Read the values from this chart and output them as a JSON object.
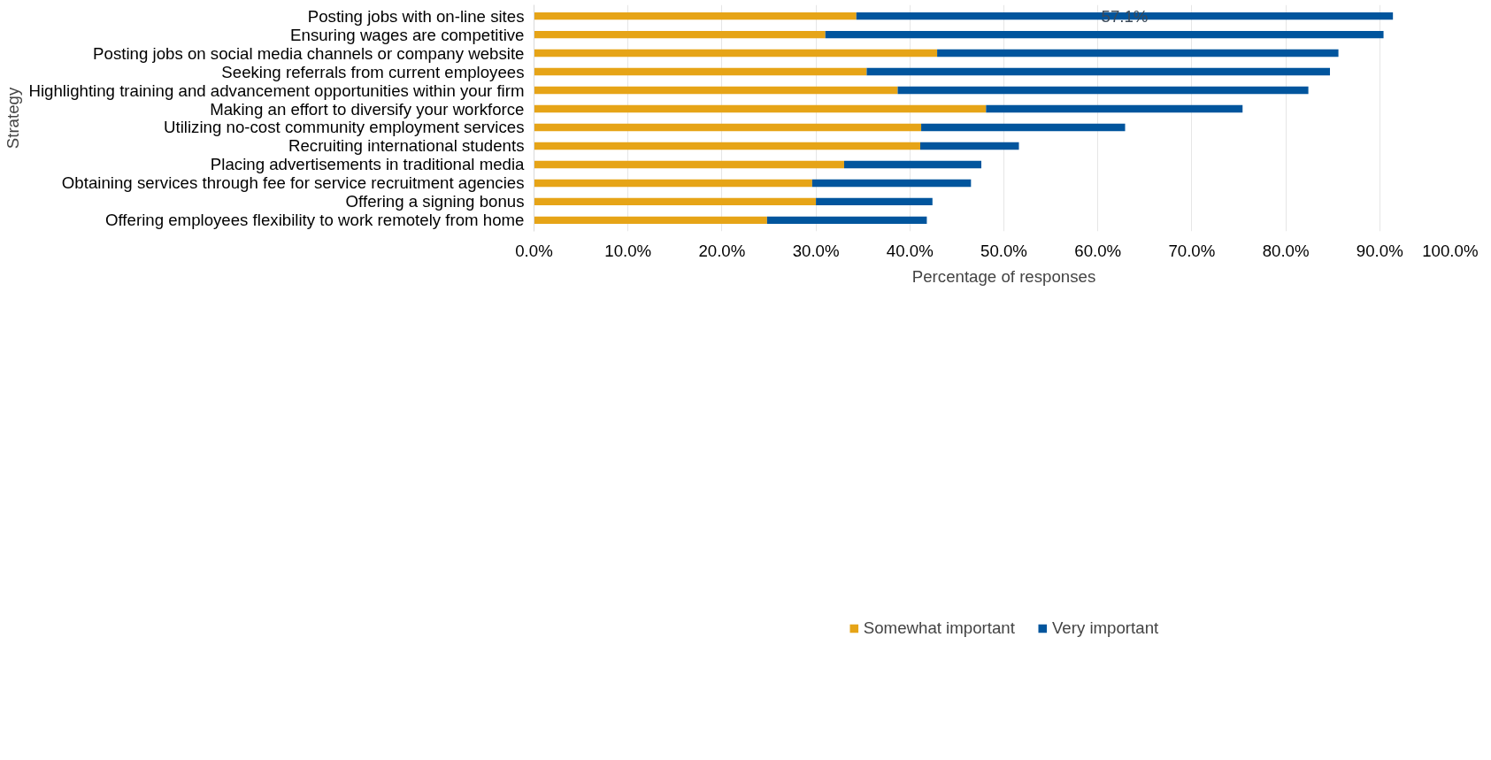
{
  "chart_data": {
    "type": "bar",
    "orientation": "horizontal",
    "stacked": true,
    "xlabel": "Percentage of responses",
    "ylabel": "Strategy",
    "categories": [
      "Posting jobs with on-line sites",
      "Ensuring wages are competitive",
      "Posting jobs on social media channels or company website",
      "Seeking referrals from current employees",
      "Highlighting training and advancement opportunities within your firm",
      "Making an effort to diversify your workforce",
      "Utilizing no-cost community employment services",
      "Recruiting international students",
      "Placing advertisements in traditional media",
      "Obtaining services through fee for service recruitment agencies",
      "Offering a signing bonus",
      "Offering employees flexibility to work remotely from home"
    ],
    "series": [
      {
        "name": "Somewhat important",
        "color": "#e6a417",
        "values": [
          34.3,
          31.0,
          42.9,
          35.4,
          38.7,
          48.1,
          41.2,
          41.1,
          33.0,
          29.6,
          30.0,
          24.8
        ]
      },
      {
        "name": "Very important",
        "color": "#01559d",
        "values": [
          57.1,
          59.4,
          42.7,
          49.3,
          43.7,
          27.3,
          21.7,
          10.5,
          14.6,
          16.9,
          12.4,
          17.0
        ],
        "value_labels": [
          "57.1%",
          null,
          null,
          null,
          null,
          null,
          null,
          null,
          null,
          null,
          null,
          null
        ]
      }
    ],
    "xlim": [
      0,
      100
    ],
    "xticks": [
      {
        "value": 0,
        "label": "0.0%"
      },
      {
        "value": 10,
        "label": "10.0%"
      },
      {
        "value": 20,
        "label": "20.0%"
      },
      {
        "value": 30,
        "label": "30.0%"
      },
      {
        "value": 40,
        "label": "40.0%"
      },
      {
        "value": 50,
        "label": "50.0%"
      },
      {
        "value": 60,
        "label": "60.0%"
      },
      {
        "value": 70,
        "label": "70.0%"
      },
      {
        "value": 80,
        "label": "80.0%"
      },
      {
        "value": 90,
        "label": "90.0%"
      },
      {
        "value": 100,
        "label": "100.0%"
      }
    ],
    "grid": "x",
    "legend": "bottom"
  }
}
